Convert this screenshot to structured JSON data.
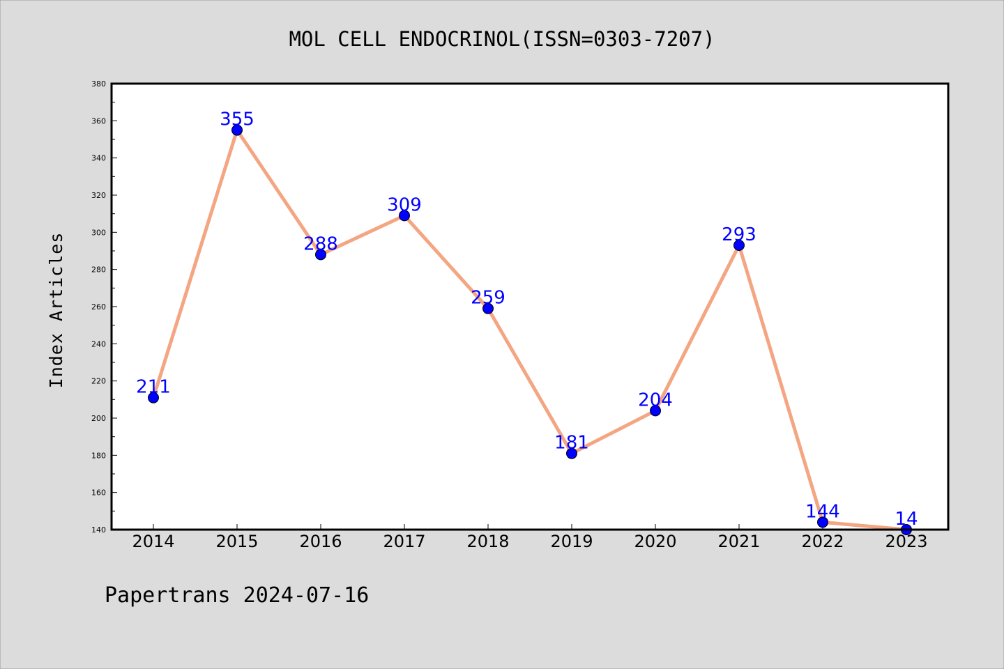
{
  "chart_data": {
    "type": "line",
    "title": "MOL CELL ENDOCRINOL(ISSN=0303-7207)",
    "xlabel": "",
    "ylabel": "Index Articles",
    "categories": [
      "2014",
      "2015",
      "2016",
      "2017",
      "2018",
      "2019",
      "2020",
      "2021",
      "2022",
      "2023"
    ],
    "values": [
      211,
      355,
      288,
      309,
      259,
      181,
      204,
      293,
      144,
      14
    ],
    "data_labels": [
      "211",
      "355",
      "288",
      "309",
      "259",
      "181",
      "204",
      "293",
      "144",
      "14"
    ],
    "ylim": [
      140,
      380
    ],
    "yticks": [
      "140",
      "160",
      "180",
      "200",
      "220",
      "240",
      "260",
      "280",
      "300",
      "320",
      "340",
      "360",
      "380"
    ],
    "grid": false,
    "line_color": "#f4a582",
    "marker_color": "#0000ff",
    "label_color": "#0000ff",
    "background_color": "#dcdcdc",
    "plot_background": "#ffffff"
  },
  "footer": "Papertrans 2024-07-16"
}
